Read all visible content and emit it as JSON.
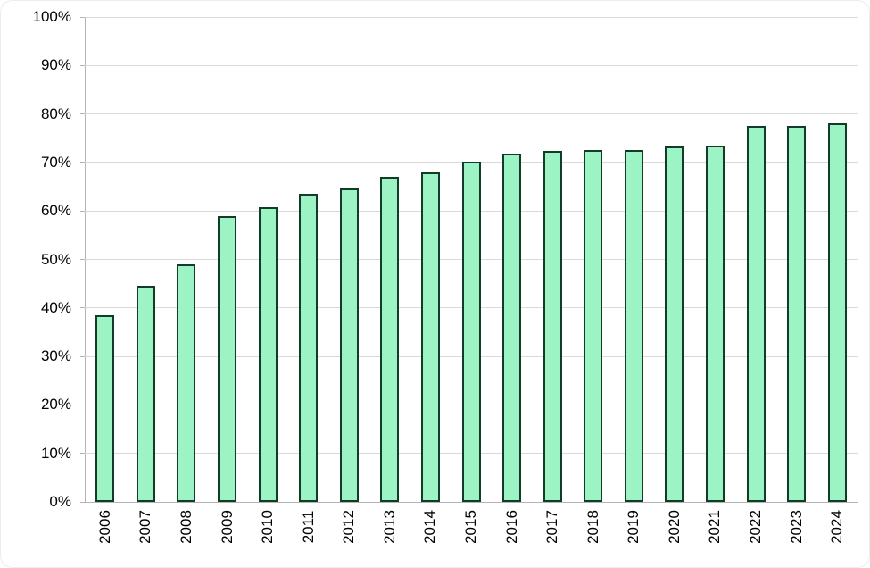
{
  "chart_data": {
    "type": "bar",
    "title": "",
    "xlabel": "",
    "ylabel": "",
    "categories": [
      "2006",
      "2007",
      "2008",
      "2009",
      "2010",
      "2011",
      "2012",
      "2013",
      "2014",
      "2015",
      "2016",
      "2017",
      "2018",
      "2019",
      "2020",
      "2021",
      "2022",
      "2023",
      "2024"
    ],
    "values": [
      38.5,
      44.6,
      48.9,
      59.0,
      60.8,
      63.6,
      64.7,
      67.0,
      67.9,
      70.2,
      71.9,
      72.4,
      72.5,
      72.6,
      73.3,
      73.5,
      77.6,
      77.6,
      78.1
    ],
    "ylim": [
      0,
      100
    ],
    "y_tick_step": 10,
    "y_tick_labels": [
      "0%",
      "10%",
      "20%",
      "30%",
      "40%",
      "50%",
      "60%",
      "70%",
      "80%",
      "90%",
      "100%"
    ],
    "grid": true,
    "legend": "none",
    "colors": {
      "bar_fill": "#9cf3c4",
      "bar_border": "#123b28",
      "gridline": "#d9d9d9",
      "axis_line": "#b3b3b3",
      "text": "#000000",
      "background": "#ffffff"
    }
  }
}
